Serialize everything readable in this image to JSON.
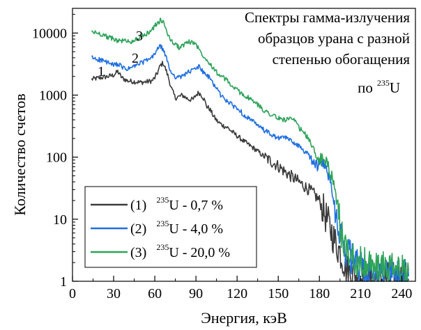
{
  "chart_data": {
    "type": "line",
    "title_lines": [
      "Спектры гамма-излучения",
      "образцов урана с разной",
      "степенью обогащения"
    ],
    "title_tail": {
      "prefix": "по",
      "sup": "235",
      "suffix": "U"
    },
    "xlabel": "Энергия, кэВ",
    "ylabel": "Количество счетов",
    "xlim": [
      0,
      250
    ],
    "ylim": [
      1,
      25000
    ],
    "yscale": "log",
    "x_ticks": [
      "0",
      "30",
      "60",
      "90",
      "120",
      "150",
      "180",
      "210",
      "240"
    ],
    "y_ticks": [
      "1",
      "10",
      "100",
      "1000",
      "10000"
    ],
    "legend_placement": "bottom-left",
    "series": [
      {
        "label": "(1)",
        "iso_sup": "235",
        "iso_text": "U - 0,7 %",
        "curve_label": "1",
        "color": "#3b3b3b",
        "x": [
          14,
          20,
          26,
          30,
          33,
          36,
          40,
          45,
          50,
          55,
          58,
          60,
          62,
          64,
          66,
          68,
          70,
          72,
          75,
          78,
          80,
          83,
          85,
          88,
          90,
          92,
          94,
          96,
          98,
          100,
          103,
          106,
          110,
          113,
          116,
          120,
          125,
          130,
          135,
          140,
          145,
          150,
          155,
          160,
          165,
          170,
          175,
          180,
          184,
          188,
          192,
          195,
          198,
          200,
          205,
          210,
          215,
          220,
          225,
          230,
          235,
          240,
          245
        ],
        "y": [
          1800,
          1900,
          2000,
          2100,
          2400,
          1900,
          1700,
          1650,
          1600,
          1650,
          1700,
          1900,
          2300,
          3000,
          3300,
          2600,
          1900,
          1300,
          900,
          950,
          1000,
          900,
          850,
          850,
          1000,
          1100,
          1000,
          850,
          650,
          600,
          450,
          370,
          320,
          300,
          260,
          220,
          180,
          150,
          125,
          100,
          85,
          72,
          58,
          48,
          40,
          33,
          27,
          20,
          12,
          7,
          4,
          3,
          2,
          1.5,
          1.3,
          1.2,
          1.2,
          1.1,
          1.1,
          1.1,
          1.1,
          1.1,
          1.1
        ]
      },
      {
        "label": "(2)",
        "iso_sup": "235",
        "iso_text": "U - 4,0 %",
        "curve_label": "2",
        "color": "#1f6fe0",
        "x": [
          14,
          18,
          22,
          26,
          30,
          33,
          36,
          40,
          45,
          50,
          55,
          58,
          60,
          62,
          64,
          66,
          68,
          70,
          72,
          75,
          78,
          80,
          83,
          86,
          90,
          92,
          94,
          96,
          100,
          103,
          106,
          108,
          110,
          113,
          116,
          120,
          125,
          130,
          135,
          140,
          145,
          150,
          155,
          158,
          162,
          165,
          170,
          175,
          178,
          182,
          186,
          190,
          193,
          196,
          200,
          205,
          210,
          215,
          220,
          225,
          230,
          235,
          240,
          245
        ],
        "y": [
          4000,
          3800,
          3600,
          3300,
          3000,
          3200,
          2800,
          2600,
          2900,
          3300,
          3700,
          4000,
          4700,
          5600,
          6100,
          5500,
          4200,
          3000,
          2300,
          2000,
          1900,
          2000,
          2300,
          2400,
          2700,
          2900,
          2600,
          2200,
          1900,
          1500,
          1200,
          1000,
          900,
          800,
          700,
          620,
          480,
          400,
          320,
          270,
          230,
          200,
          210,
          190,
          170,
          150,
          120,
          90,
          75,
          80,
          60,
          25,
          10,
          5,
          3,
          2,
          1.6,
          1.4,
          1.3,
          1.3,
          1.2,
          1.2,
          1.2,
          1.2
        ]
      },
      {
        "label": "(3)",
        "iso_sup": "235",
        "iso_text": "U - 20,0 %",
        "curve_label": "3",
        "color": "#2ea35a",
        "x": [
          14,
          18,
          22,
          26,
          30,
          34,
          38,
          43,
          52,
          55,
          58,
          60,
          62,
          64,
          66,
          68,
          70,
          72,
          75,
          78,
          80,
          83,
          86,
          90,
          92,
          94,
          96,
          100,
          103,
          106,
          108,
          110,
          113,
          116,
          120,
          125,
          130,
          135,
          140,
          145,
          150,
          155,
          158,
          162,
          165,
          170,
          175,
          178,
          182,
          186,
          190,
          193,
          196,
          200,
          205,
          210,
          215,
          220,
          225,
          230,
          235,
          240,
          245
        ],
        "y": [
          10500,
          10000,
          9500,
          8500,
          8000,
          7500,
          7500,
          7300,
          9000,
          10000,
          11500,
          13000,
          14500,
          16000,
          15000,
          12000,
          9000,
          7500,
          6500,
          5800,
          6200,
          7000,
          7200,
          6800,
          5500,
          4800,
          4200,
          3300,
          2700,
          2200,
          2000,
          1900,
          1700,
          1400,
          1200,
          1000,
          850,
          700,
          560,
          490,
          420,
          400,
          420,
          380,
          300,
          230,
          150,
          100,
          90,
          80,
          40,
          15,
          6,
          3,
          2.5,
          2,
          1.8,
          1.7,
          1.6,
          1.6,
          1.5,
          1.5,
          1.5
        ]
      }
    ]
  }
}
